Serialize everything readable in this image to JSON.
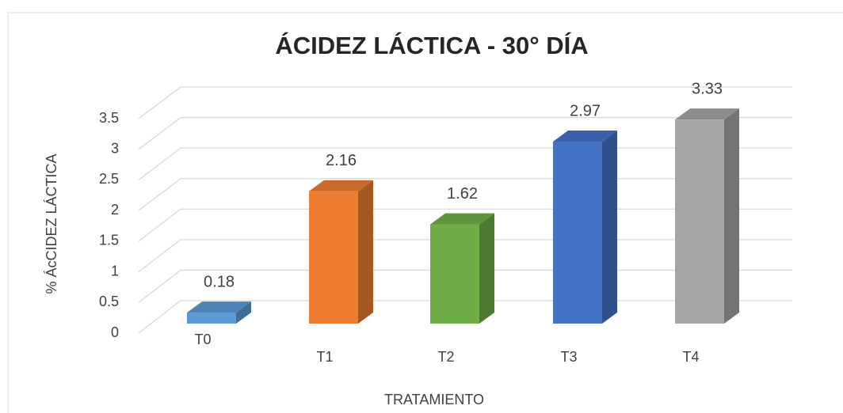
{
  "chart_data": {
    "type": "bar3d",
    "title": "ÁCIDEZ LÁCTICA - 30° DÍA",
    "x_label": "TRATAMIENTO",
    "y_label": "% ÁcCIDEZ LÁCTICA",
    "categories": [
      "T0",
      "T1",
      "T2",
      "T3",
      "T4"
    ],
    "values": [
      0.18,
      2.16,
      1.62,
      2.97,
      3.33
    ],
    "colors": [
      "#5b9bd5",
      "#ed7d31",
      "#70ad47",
      "#4472c4",
      "#a5a5a5"
    ],
    "ylim": [
      0,
      3.5
    ],
    "yticks": [
      0,
      0.5,
      1,
      1.5,
      2,
      2.5,
      3,
      3.5
    ],
    "grid": true
  }
}
